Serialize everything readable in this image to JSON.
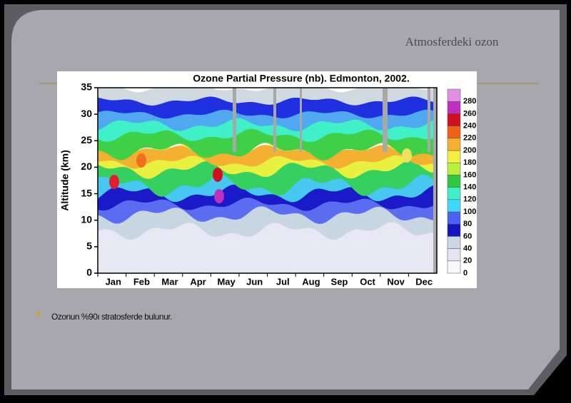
{
  "slide": {
    "title": "Atmosferdeki ozon",
    "bullet": "Ozonun %90ı stratosferde bulunur."
  },
  "figure": {
    "title": "Ozone Partial Pressure (nb). Edmonton, 2002.",
    "y_label": "Altitude (km)",
    "y_ticks": [
      "0",
      "5",
      "10",
      "15",
      "20",
      "25",
      "30",
      "35"
    ],
    "x_labels": [
      "Jan",
      "Feb",
      "Mar",
      "Apr",
      "May",
      "Jun",
      "Jul",
      "Aug",
      "Sep",
      "Oct",
      "Nov",
      "Dec"
    ],
    "colorbar_labels": [
      "0",
      "20",
      "40",
      "60",
      "80",
      "100",
      "120",
      "140",
      "160",
      "180",
      "200",
      "220",
      "240",
      "260",
      "280"
    ]
  }
}
